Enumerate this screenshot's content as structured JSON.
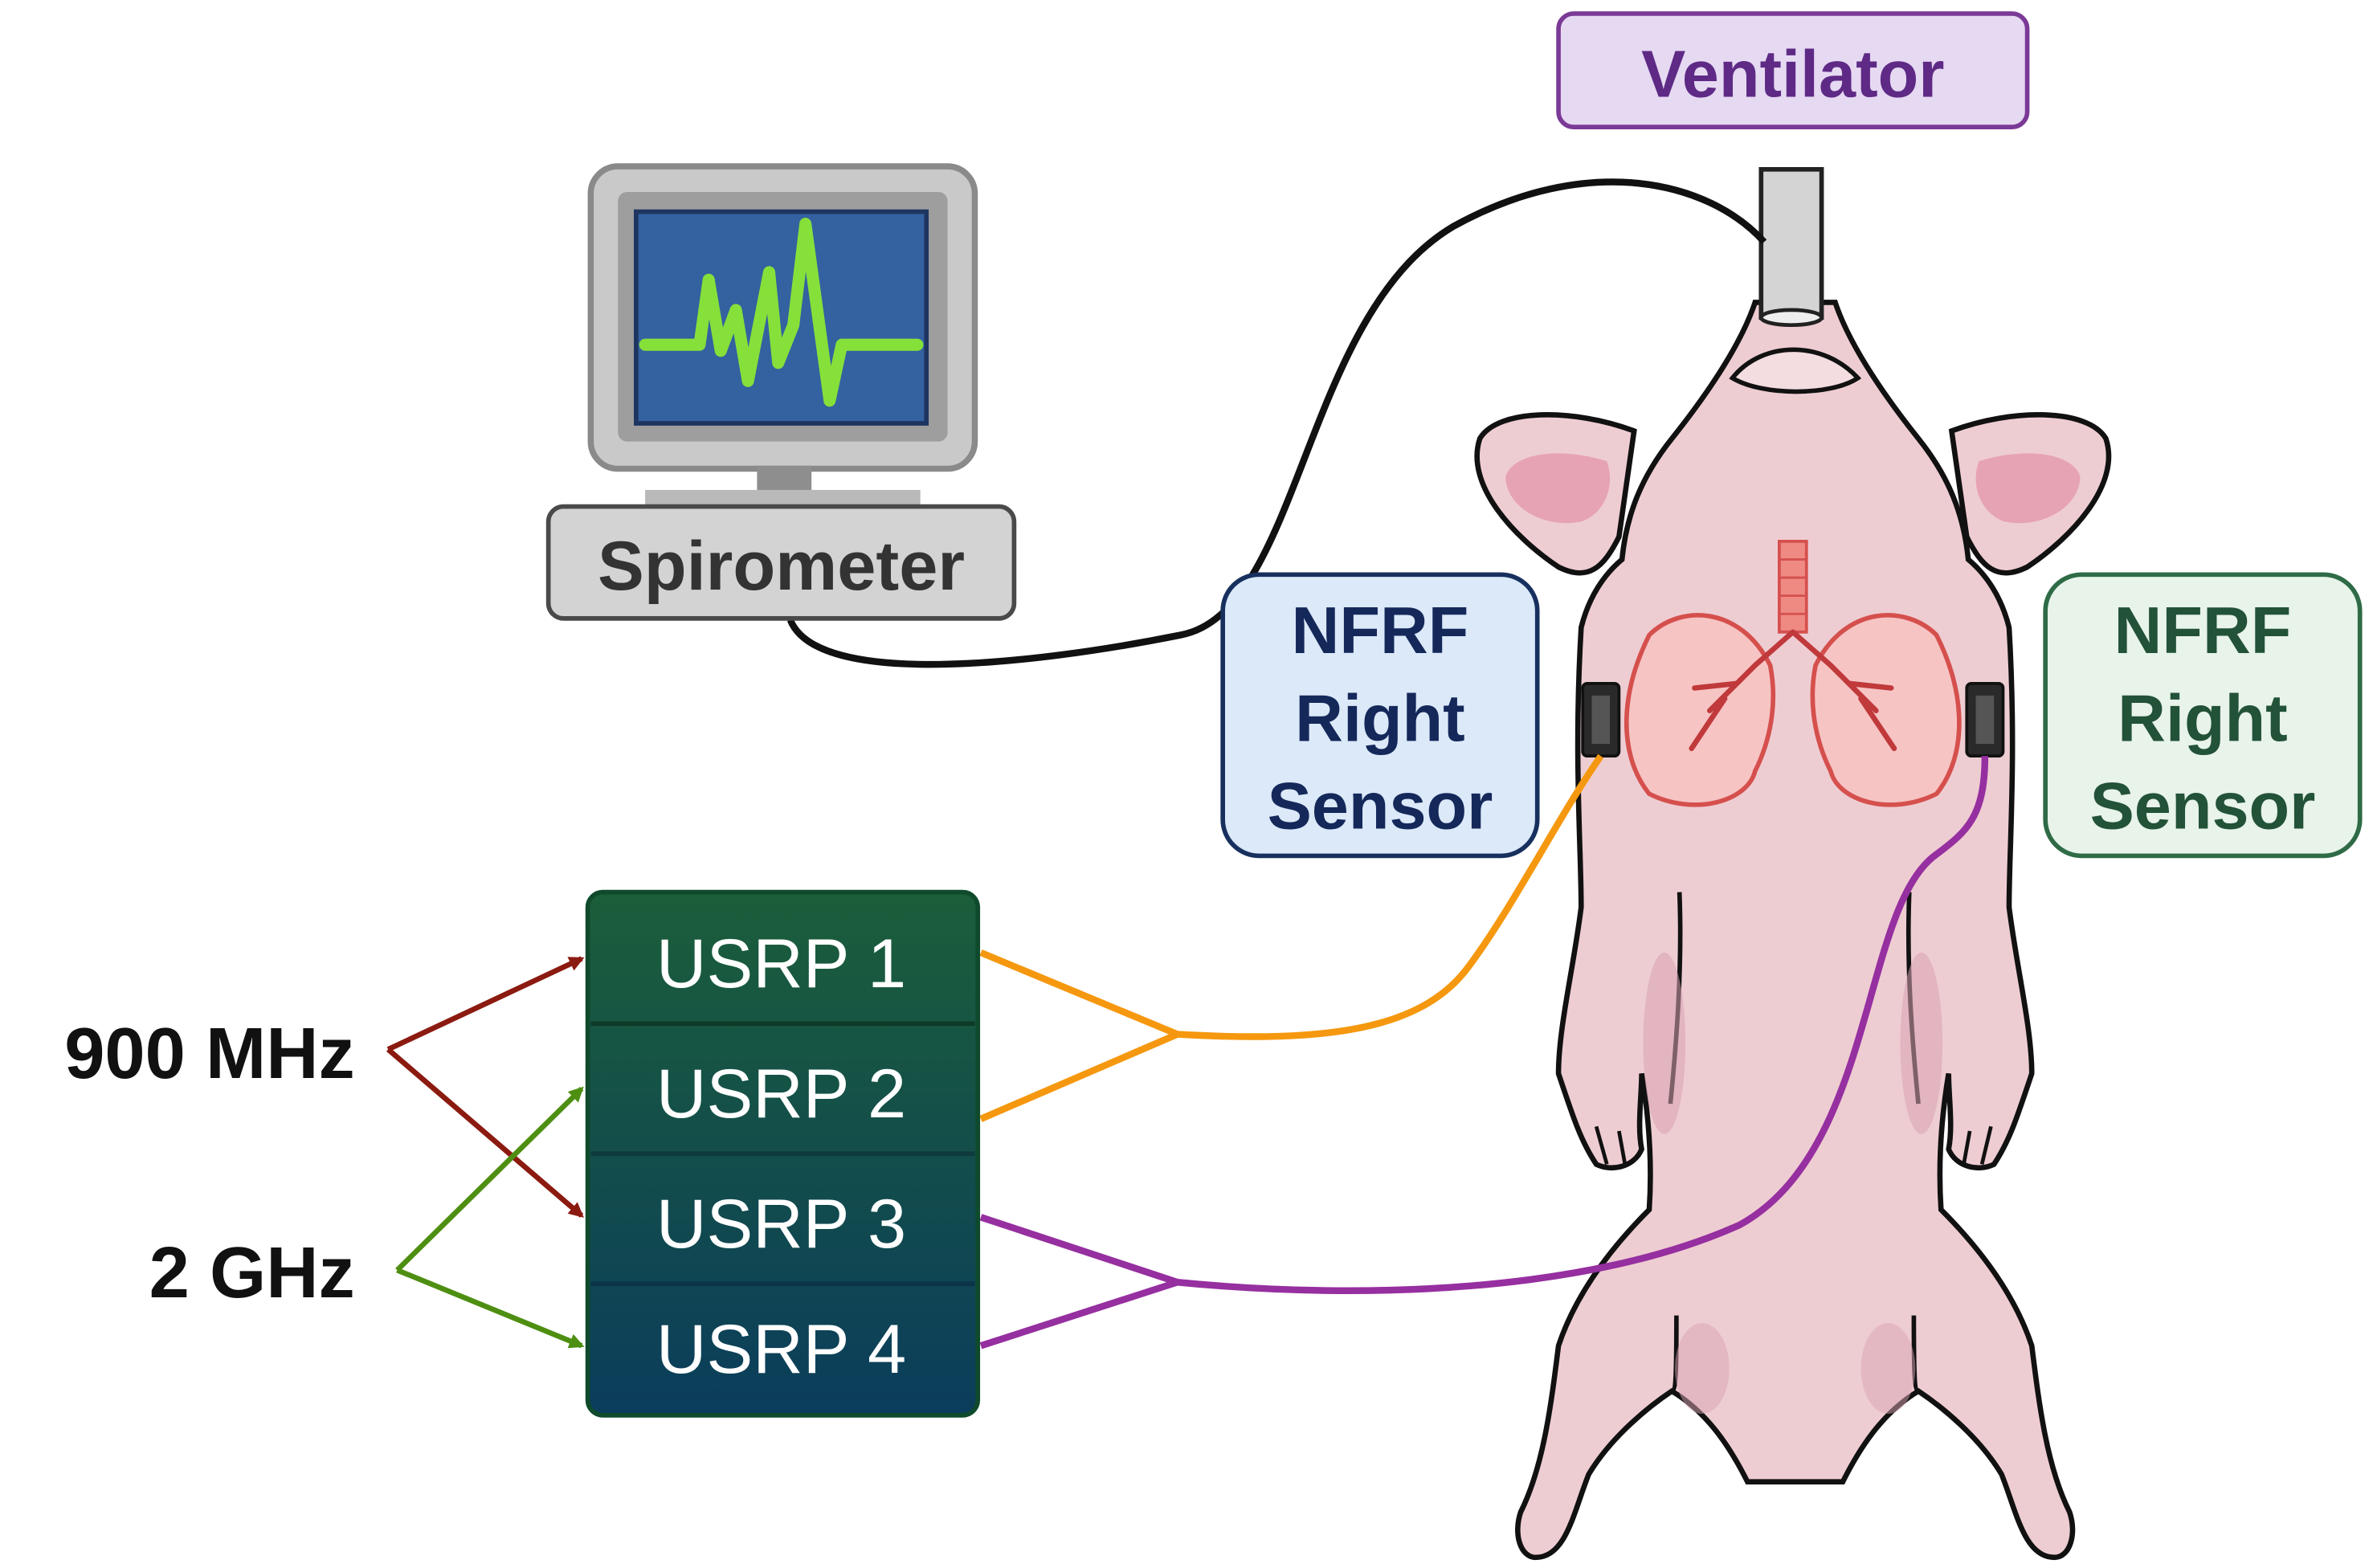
{
  "ventilator": {
    "label": "Ventilator"
  },
  "spirometer": {
    "label": "Spirometer"
  },
  "sensors": {
    "left": {
      "line1": "NFRF",
      "line2": "Right",
      "line3": "Sensor"
    },
    "right": {
      "line1": "NFRF",
      "line2": "Right",
      "line3": "Sensor"
    }
  },
  "usrp": [
    "USRP 1",
    "USRP 2",
    "USRP 3",
    "USRP 4"
  ],
  "frequencies": {
    "f1": "900 MHz",
    "f2": "2 GHz"
  },
  "colors": {
    "ventilator_fill": "#e6d9f2",
    "ventilator_stroke": "#7b3a96",
    "ventilator_text": "#5e2a85",
    "left_sensor_fill": "#dbe9f9",
    "left_sensor_stroke": "#17305e",
    "left_sensor_text": "#14285a",
    "right_sensor_fill": "#e8f3ea",
    "right_sensor_stroke": "#2e6b46",
    "right_sensor_text": "#225238",
    "usrp_top": "#1b5e3a",
    "usrp_bottom": "#0b3d5c",
    "wire_900": "#8b1a10",
    "wire_2g": "#4e8f12",
    "cable_orange": "#f5980f",
    "cable_purple": "#962fa0",
    "pig_body": "#eecdd2",
    "screen": "#3461a0",
    "trace": "#86e03a"
  }
}
